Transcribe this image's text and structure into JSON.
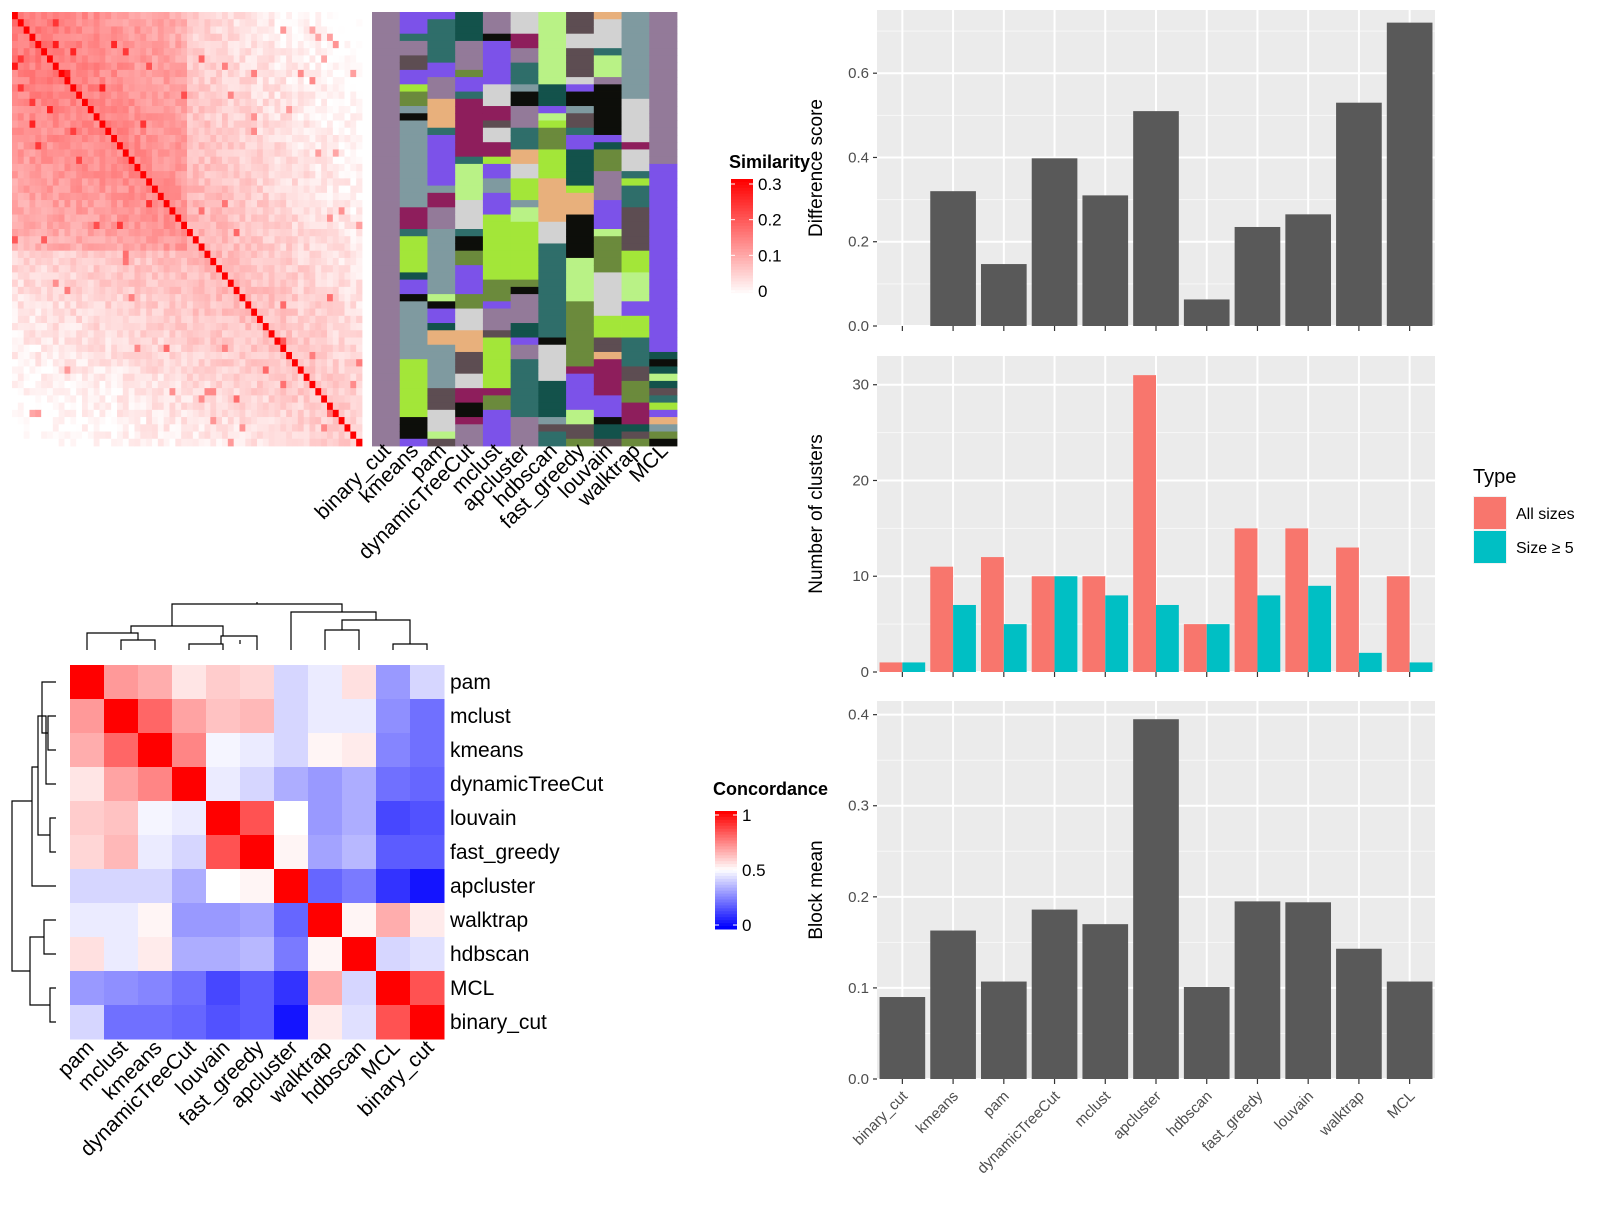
{
  "method_order_top": [
    "binary_cut",
    "kmeans",
    "pam",
    "dynamicTreeCut",
    "mclust",
    "apcluster",
    "hdbscan",
    "fast_greedy",
    "louvain",
    "walktrap",
    "MCL"
  ],
  "method_order_concordance": [
    "pam",
    "mclust",
    "kmeans",
    "dynamicTreeCut",
    "louvain",
    "fast_greedy",
    "apcluster",
    "walktrap",
    "hdbscan",
    "MCL",
    "binary_cut"
  ],
  "similarity_legend": {
    "title": "Similarity",
    "ticks": [
      "0.3",
      "0.2",
      "0.1",
      "0"
    ],
    "colors": {
      "high": "#ff0000",
      "low": "#ffffff"
    }
  },
  "concordance_legend": {
    "title": "Concordance",
    "ticks": [
      "1",
      "0.5",
      "0"
    ],
    "colors": {
      "high": "#ff0000",
      "mid": "#ffffff",
      "low": "#0000ff"
    }
  },
  "cluster_palette": [
    "#937a99",
    "#7f9aa0",
    "#8e1e5c",
    "#13524b",
    "#a3e639",
    "#e8b07c",
    "#0d0e0a",
    "#6b8a3c",
    "#b9f286",
    "#7c52e9",
    "#5d4d52",
    "#2f6e6a",
    "#d2d2d2"
  ],
  "chart_data": [
    {
      "type": "bar",
      "categories": [
        "binary_cut",
        "kmeans",
        "pam",
        "dynamicTreeCut",
        "mclust",
        "apcluster",
        "hdbscan",
        "fast_greedy",
        "louvain",
        "walktrap",
        "MCL"
      ],
      "values": [
        0,
        0.32,
        0.147,
        0.398,
        0.31,
        0.51,
        0.063,
        0.235,
        0.265,
        0.53,
        0.72
      ],
      "title": "",
      "xlabel": "",
      "ylabel": "Difference score",
      "ylim": [
        0,
        0.75
      ],
      "yticks": [
        "0.0",
        "0.2",
        "0.4",
        "0.6"
      ],
      "bar_color": "#595959"
    },
    {
      "type": "bar",
      "categories": [
        "binary_cut",
        "kmeans",
        "pam",
        "dynamicTreeCut",
        "mclust",
        "apcluster",
        "hdbscan",
        "fast_greedy",
        "louvain",
        "walktrap",
        "MCL"
      ],
      "series": [
        {
          "name": "All sizes",
          "values": [
            1,
            11,
            12,
            10,
            10,
            31,
            5,
            15,
            15,
            13,
            10
          ],
          "color": "#f8766d"
        },
        {
          "name": "Size ≥ 5",
          "values": [
            1,
            7,
            5,
            10,
            8,
            7,
            5,
            8,
            9,
            2,
            1
          ],
          "color": "#00bfc4"
        }
      ],
      "title": "",
      "xlabel": "",
      "ylabel": "Number of clusters",
      "ylim": [
        0,
        33
      ],
      "yticks": [
        "0",
        "10",
        "20",
        "30"
      ],
      "legend": {
        "title": "Type",
        "position": "right"
      }
    },
    {
      "type": "bar",
      "categories": [
        "binary_cut",
        "kmeans",
        "pam",
        "dynamicTreeCut",
        "mclust",
        "apcluster",
        "hdbscan",
        "fast_greedy",
        "louvain",
        "walktrap",
        "MCL"
      ],
      "values": [
        0.09,
        0.163,
        0.107,
        0.186,
        0.17,
        0.395,
        0.101,
        0.195,
        0.194,
        0.143,
        0.107
      ],
      "title": "",
      "xlabel": "",
      "ylabel": "Block mean",
      "ylim": [
        0,
        0.415
      ],
      "yticks": [
        "0.0",
        "0.1",
        "0.2",
        "0.3",
        "0.4"
      ],
      "bar_color": "#595959"
    },
    {
      "type": "heatmap",
      "rows": [
        "pam",
        "mclust",
        "kmeans",
        "dynamicTreeCut",
        "louvain",
        "fast_greedy",
        "apcluster",
        "walktrap",
        "hdbscan",
        "MCL",
        "binary_cut"
      ],
      "cols": [
        "pam",
        "mclust",
        "kmeans",
        "dynamicTreeCut",
        "louvain",
        "fast_greedy",
        "apcluster",
        "walktrap",
        "hdbscan",
        "MCL",
        "binary_cut"
      ],
      "values": [
        [
          1.0,
          0.7,
          0.66,
          0.55,
          0.6,
          0.58,
          0.42,
          0.46,
          0.56,
          0.3,
          0.42
        ],
        [
          0.7,
          1.0,
          0.8,
          0.68,
          0.62,
          0.64,
          0.42,
          0.46,
          0.46,
          0.28,
          0.22
        ],
        [
          0.66,
          0.8,
          1.0,
          0.74,
          0.48,
          0.46,
          0.42,
          0.52,
          0.54,
          0.26,
          0.22
        ],
        [
          0.55,
          0.68,
          0.74,
          1.0,
          0.46,
          0.42,
          0.34,
          0.3,
          0.34,
          0.22,
          0.2
        ],
        [
          0.6,
          0.62,
          0.48,
          0.46,
          1.0,
          0.84,
          0.5,
          0.3,
          0.34,
          0.14,
          0.16
        ],
        [
          0.58,
          0.64,
          0.46,
          0.42,
          0.84,
          1.0,
          0.52,
          0.32,
          0.36,
          0.18,
          0.18
        ],
        [
          0.42,
          0.42,
          0.42,
          0.34,
          0.5,
          0.52,
          1.0,
          0.2,
          0.24,
          0.1,
          0.04
        ],
        [
          0.46,
          0.46,
          0.52,
          0.3,
          0.3,
          0.32,
          0.2,
          1.0,
          0.52,
          0.66,
          0.54
        ],
        [
          0.56,
          0.46,
          0.54,
          0.34,
          0.34,
          0.36,
          0.24,
          0.52,
          1.0,
          0.42,
          0.44
        ],
        [
          0.3,
          0.28,
          0.26,
          0.22,
          0.14,
          0.18,
          0.1,
          0.66,
          0.42,
          1.0,
          0.84
        ],
        [
          0.42,
          0.22,
          0.22,
          0.2,
          0.16,
          0.18,
          0.04,
          0.54,
          0.44,
          0.84,
          1.0
        ]
      ]
    }
  ]
}
